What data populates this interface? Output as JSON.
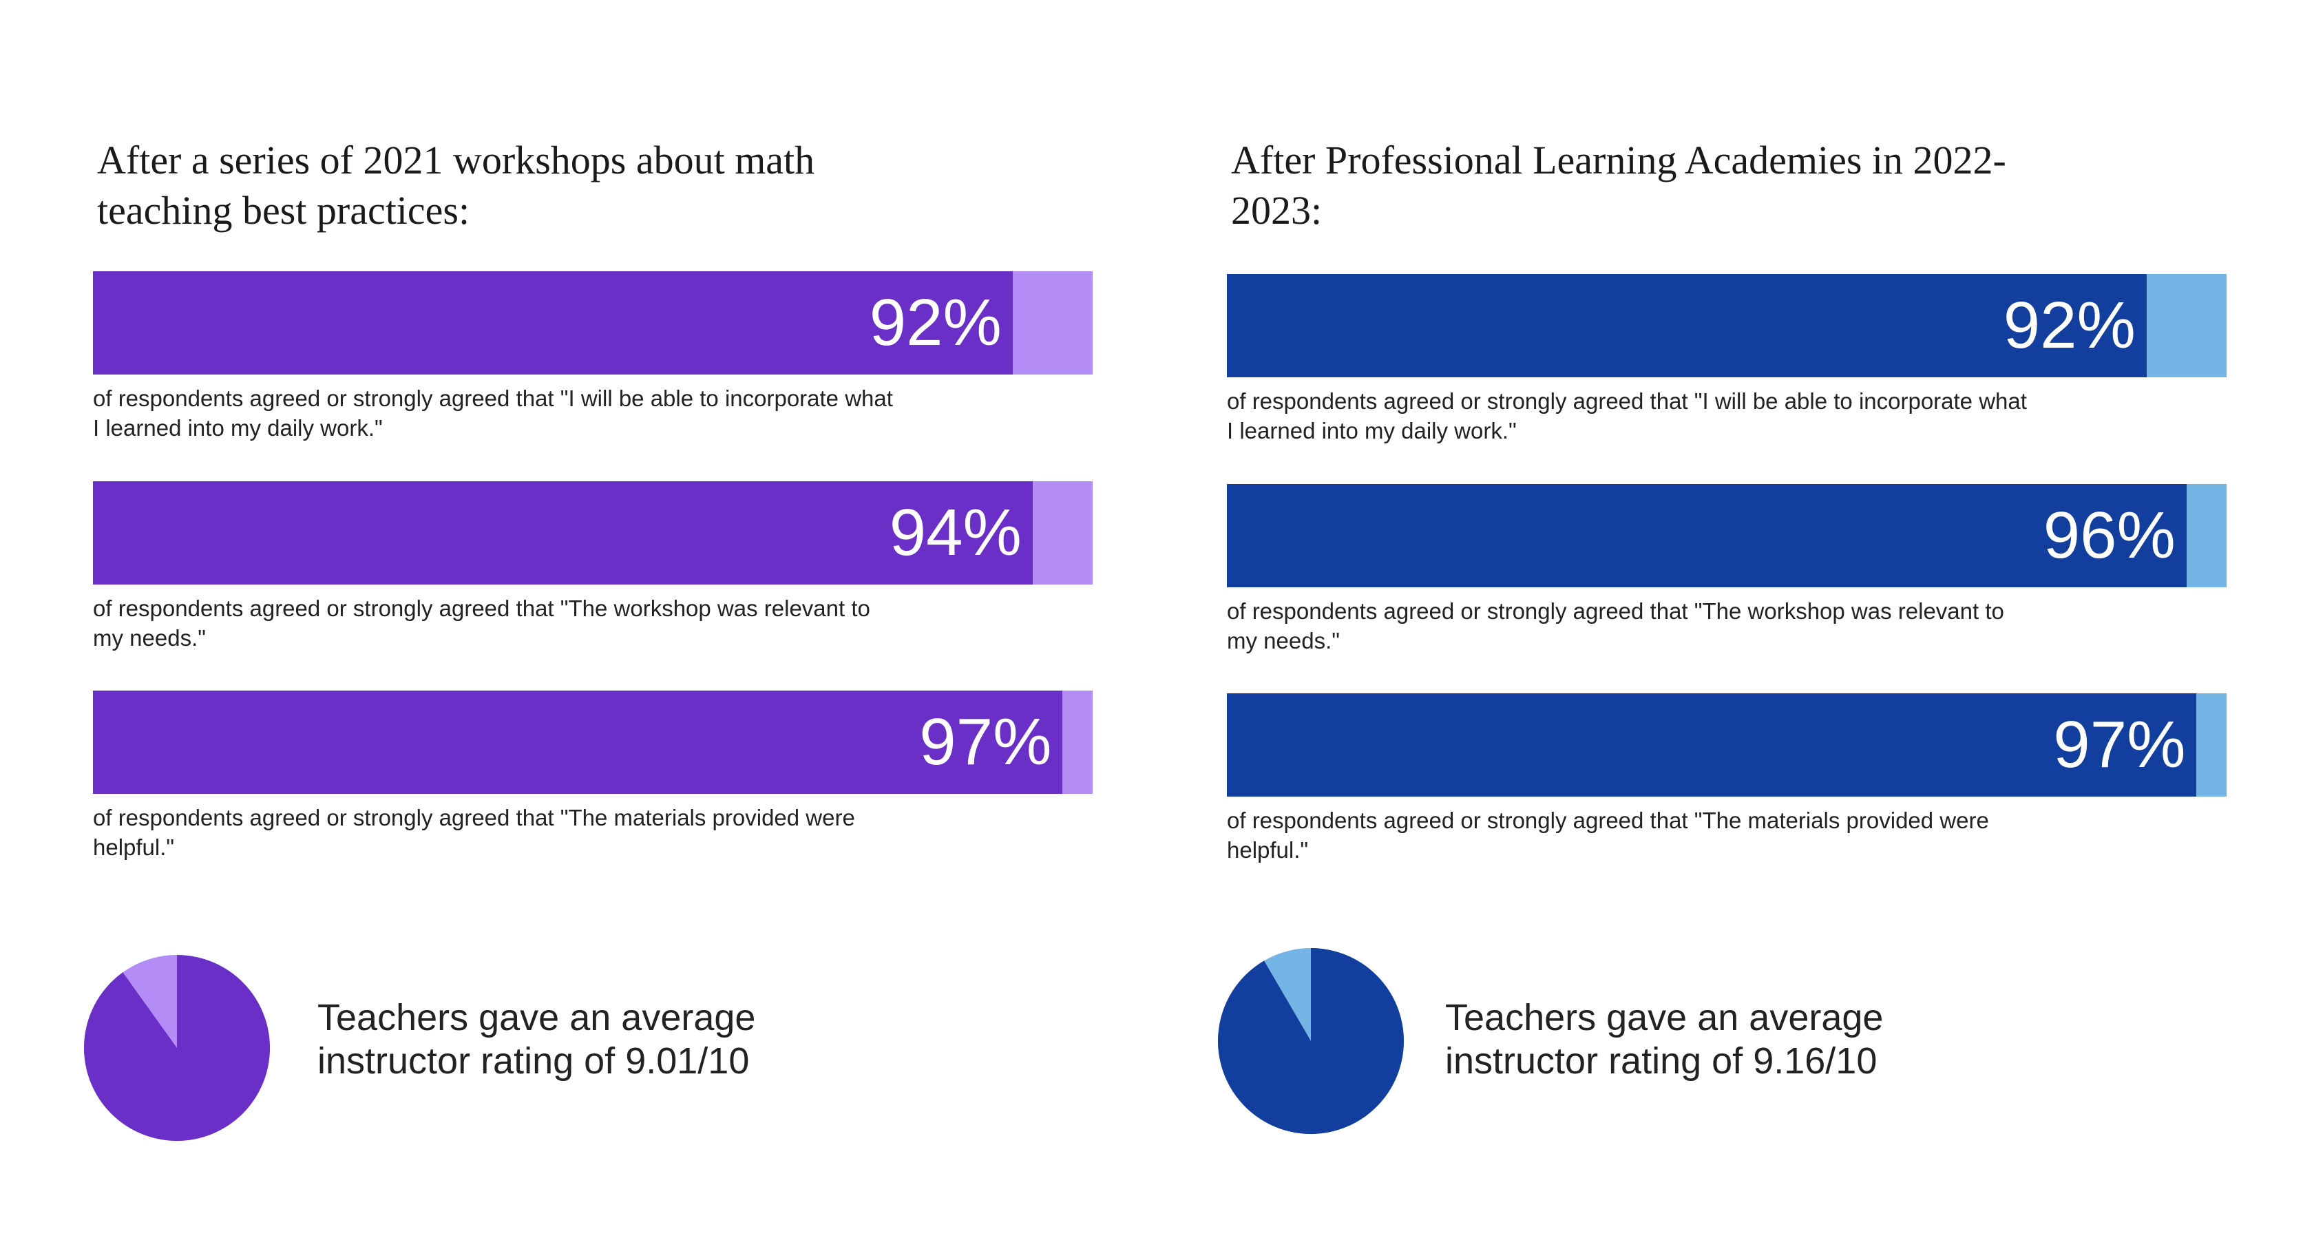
{
  "chart_data": [
    {
      "type": "bar",
      "title": "After a series of 2021 workshops about math teaching best practices:",
      "categories": [
        "of respondents agreed or strongly agreed that \"I will be able to incorporate what I learned into my daily work.\"",
        "of respondents agreed or strongly agreed that \"The workshop was relevant to my needs.\"",
        "of respondents agreed or strongly agreed that \"The materials provided were helpful.\""
      ],
      "values": [
        92,
        94,
        97
      ],
      "value_labels": [
        "92%",
        "94%",
        "97%"
      ],
      "xlim": [
        0,
        100
      ],
      "color": "#6a2fc6",
      "track_color": "#b38cf5",
      "pie": {
        "text": "Teachers gave an average instructor rating of 9.01/10",
        "value": 9.01,
        "max": 10
      }
    },
    {
      "type": "bar",
      "title": "After Professional Learning Academies in 2022-2023:",
      "categories": [
        "of respondents agreed or strongly agreed that \"I will be able to incorporate what I learned into my daily work.\"",
        "of respondents agreed or strongly agreed that \"The workshop was relevant to my needs.\"",
        "of respondents agreed or strongly agreed that \"The materials provided were helpful.\""
      ],
      "values": [
        92,
        96,
        97
      ],
      "value_labels": [
        "92%",
        "96%",
        "97%"
      ],
      "xlim": [
        0,
        100
      ],
      "color": "#123f9e",
      "track_color": "#74b5e6",
      "pie": {
        "text": "Teachers gave an average instructor rating of 9.16/10",
        "value": 9.16,
        "max": 10
      }
    }
  ]
}
